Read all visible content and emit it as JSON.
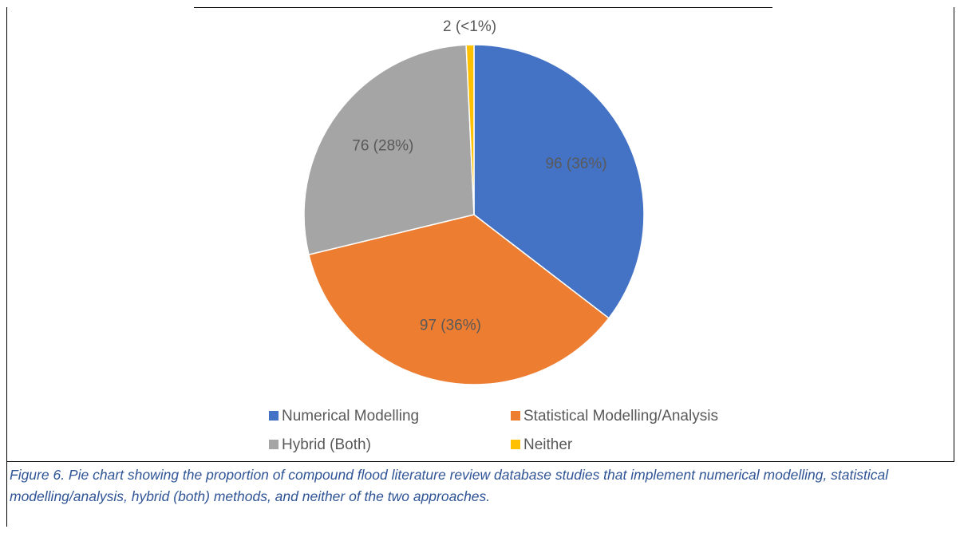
{
  "chart_data": {
    "type": "pie",
    "categories": [
      "Numerical Modelling",
      "Statistical Modelling/Analysis",
      "Hybrid (Both)",
      "Neither"
    ],
    "values": [
      96,
      97,
      76,
      2
    ],
    "value_labels": [
      "96 (36%)",
      "97 (36%)",
      "76 (28%)",
      "2 (<1%)"
    ],
    "colors": [
      "#4472c4",
      "#ed7d31",
      "#a5a5a5",
      "#ffc000"
    ],
    "legend": "bottom"
  },
  "caption": "Figure 6. Pie chart showing the proportion of compound flood literature review database studies that implement numerical modelling, statistical modelling/analysis, hybrid (both) methods, and neither of the two approaches."
}
